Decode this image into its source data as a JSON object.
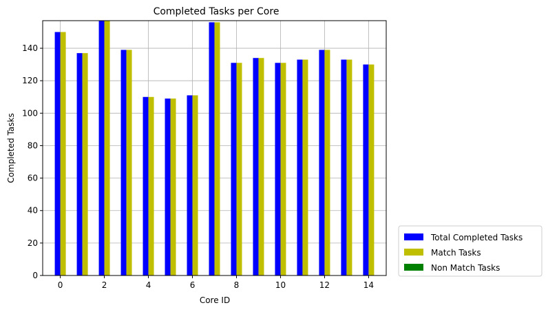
{
  "chart_data": {
    "type": "bar",
    "title": "Completed Tasks per Core",
    "xlabel": "Core ID",
    "ylabel": "Completed Tasks",
    "categories": [
      0,
      1,
      2,
      3,
      4,
      5,
      6,
      7,
      8,
      9,
      10,
      11,
      12,
      13,
      14
    ],
    "xticks": [
      "0",
      "2",
      "4",
      "6",
      "8",
      "10",
      "12",
      "14"
    ],
    "yticks": [
      "0",
      "20",
      "40",
      "60",
      "80",
      "100",
      "120",
      "140"
    ],
    "xlim": [
      -0.8,
      14.8
    ],
    "ylim": [
      0,
      157
    ],
    "grid": true,
    "legend_position": "outside-bottom-right",
    "series": [
      {
        "name": "Total Completed Tasks",
        "color": "#0000ff",
        "values": [
          150,
          137,
          157,
          139,
          110,
          109,
          111,
          156,
          131,
          134,
          131,
          133,
          139,
          133,
          130
        ]
      },
      {
        "name": "Match Tasks",
        "color": "#bfbf00",
        "values": [
          150,
          137,
          157,
          139,
          110,
          109,
          111,
          156,
          131,
          134,
          131,
          133,
          139,
          133,
          130
        ]
      },
      {
        "name": "Non Match Tasks",
        "color": "#008000",
        "values": [
          0,
          0,
          0,
          0,
          0,
          0,
          0,
          0,
          0,
          0,
          0,
          0,
          0,
          0,
          0
        ]
      }
    ]
  }
}
